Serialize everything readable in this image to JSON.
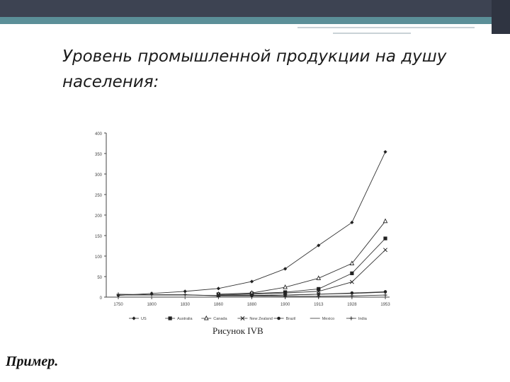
{
  "slide": {
    "title": "Уровень промышленной продукции на душу населения:",
    "caption": "Рисунок IVB",
    "example": "Пример."
  },
  "chart_data": {
    "type": "line",
    "x": [
      "1750",
      "1800",
      "1830",
      "1860",
      "1880",
      "1900",
      "1913",
      "1928",
      "1953"
    ],
    "ylim": [
      0,
      400
    ],
    "yticks": [
      0,
      50,
      100,
      150,
      200,
      250,
      300,
      350,
      400
    ],
    "ytick_labels": [
      "0",
      "50",
      "100",
      "150",
      "200",
      "250",
      "300",
      "350",
      "400"
    ],
    "grid": false,
    "legend_position": "bottom",
    "series": [
      {
        "name": "US",
        "marker": "diamond",
        "values": [
          4,
          9,
          14,
          21,
          38,
          69,
          126,
          182,
          354
        ]
      },
      {
        "name": "Australia",
        "marker": "square",
        "values": [
          null,
          null,
          null,
          7,
          9,
          12,
          20,
          58,
          143
        ]
      },
      {
        "name": "Canada",
        "marker": "triangle",
        "values": [
          null,
          null,
          null,
          7,
          10,
          24,
          46,
          82,
          185
        ]
      },
      {
        "name": "New Zealand",
        "marker": "x",
        "values": [
          null,
          null,
          null,
          5,
          7,
          10,
          14,
          37,
          115
        ]
      },
      {
        "name": "Brazil",
        "marker": "dot",
        "values": [
          null,
          null,
          null,
          4,
          4,
          5,
          7,
          10,
          13
        ]
      },
      {
        "name": "Mexico",
        "marker": "none",
        "values": [
          5,
          5,
          5,
          4,
          4,
          5,
          7,
          9,
          12
        ]
      },
      {
        "name": "India",
        "marker": "plus",
        "values": [
          7,
          6,
          6,
          3,
          3,
          2,
          2,
          3,
          5
        ]
      }
    ]
  }
}
